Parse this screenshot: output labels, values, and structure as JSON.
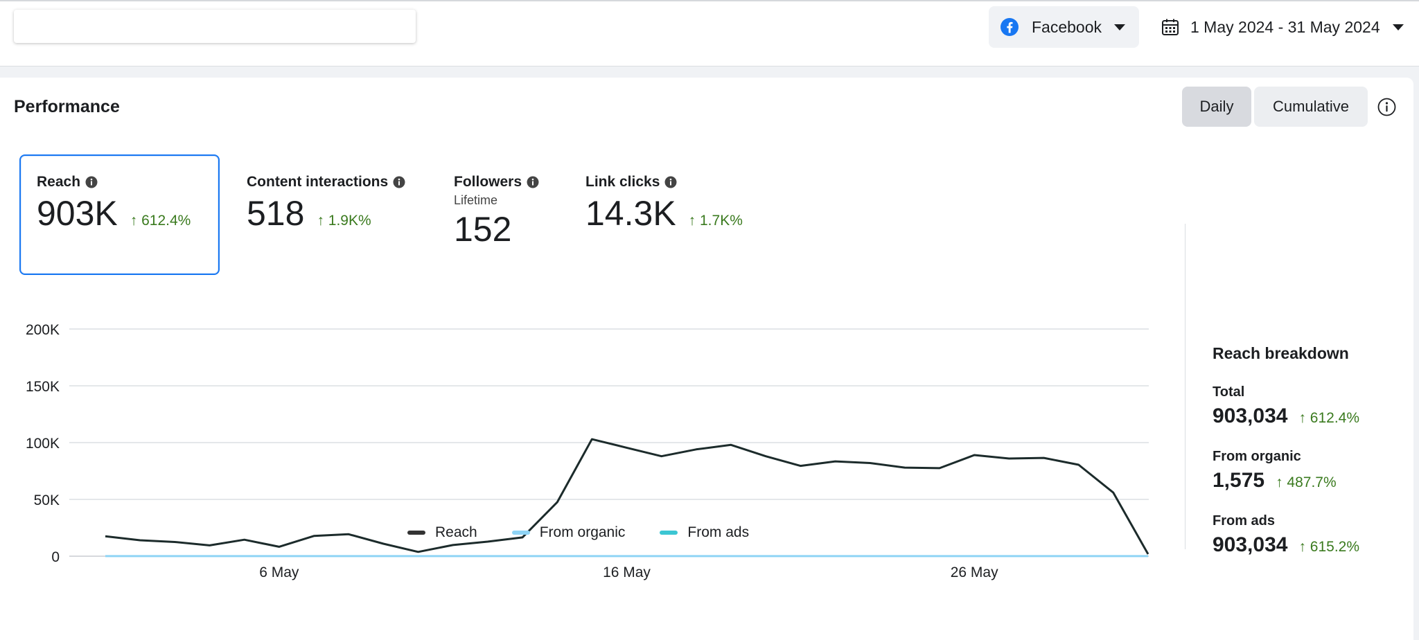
{
  "header": {
    "platform": "Facebook",
    "date_range": "1 May 2024 - 31 May 2024"
  },
  "performance": {
    "title": "Performance",
    "toggle": {
      "daily": "Daily",
      "cumulative": "Cumulative",
      "selected": "Daily"
    },
    "metrics": [
      {
        "label": "Reach",
        "value": "903K",
        "delta": "↑ 612.4%",
        "sublabel": ""
      },
      {
        "label": "Content interactions",
        "value": "518",
        "delta": "↑ 1.9K%",
        "sublabel": ""
      },
      {
        "label": "Followers",
        "value": "152",
        "delta": "",
        "sublabel": "Lifetime"
      },
      {
        "label": "Link clicks",
        "value": "14.3K",
        "delta": "↑ 1.7K%",
        "sublabel": ""
      }
    ]
  },
  "breakdown": {
    "title": "Reach breakdown",
    "items": [
      {
        "label": "Total",
        "value": "903,034",
        "delta": "↑ 612.4%"
      },
      {
        "label": "From organic",
        "value": "1,575",
        "delta": "↑ 487.7%"
      },
      {
        "label": "From ads",
        "value": "903,034",
        "delta": "↑ 615.2%"
      }
    ]
  },
  "colors": {
    "reach": "#1c2b2b",
    "organic": "#8fd4f5",
    "ads": "#3cc6d3",
    "positive": "#3a7a1e",
    "selected_border": "#1877f2"
  },
  "chart_data": {
    "type": "line",
    "x": [
      1,
      2,
      3,
      4,
      5,
      6,
      7,
      8,
      9,
      10,
      11,
      12,
      13,
      14,
      15,
      16,
      17,
      18,
      19,
      20,
      21,
      22,
      23,
      24,
      25,
      26,
      27,
      28,
      29,
      30,
      31
    ],
    "x_ticks": [
      {
        "x": 6,
        "label": "6 May"
      },
      {
        "x": 16,
        "label": "16 May"
      },
      {
        "x": 26,
        "label": "26 May"
      }
    ],
    "y_ticks": [
      {
        "value": 0,
        "label": "0"
      },
      {
        "value": 50000,
        "label": "50K"
      },
      {
        "value": 100000,
        "label": "100K"
      },
      {
        "value": 150000,
        "label": "150K"
      },
      {
        "value": 200000,
        "label": "200K"
      }
    ],
    "ylim": [
      0,
      200000
    ],
    "xlim": [
      1,
      31
    ],
    "grid": true,
    "legend": "bottom",
    "series": [
      {
        "name": "Reach",
        "values": [
          17500,
          14000,
          12500,
          9500,
          14500,
          8300,
          17800,
          19300,
          11000,
          3800,
          9800,
          12800,
          16500,
          47500,
          103000,
          95500,
          88000,
          94000,
          98000,
          88000,
          79500,
          83500,
          82000,
          78000,
          77500,
          89000,
          86000,
          86500,
          80500,
          56000,
          1800
        ]
      },
      {
        "name": "From organic",
        "values": [
          50,
          50,
          50,
          50,
          50,
          50,
          50,
          50,
          50,
          50,
          50,
          50,
          50,
          50,
          50,
          50,
          50,
          50,
          50,
          50,
          50,
          50,
          50,
          50,
          50,
          50,
          50,
          50,
          50,
          50,
          50
        ]
      },
      {
        "name": "From ads",
        "values": [
          17450,
          13950,
          12450,
          9450,
          14450,
          8250,
          17750,
          19250,
          10950,
          3750,
          9750,
          12750,
          16450,
          47450,
          102950,
          95450,
          87950,
          93950,
          97950,
          87950,
          79450,
          83450,
          81950,
          77950,
          77450,
          88950,
          85950,
          86450,
          80450,
          55950,
          1750
        ]
      }
    ]
  }
}
